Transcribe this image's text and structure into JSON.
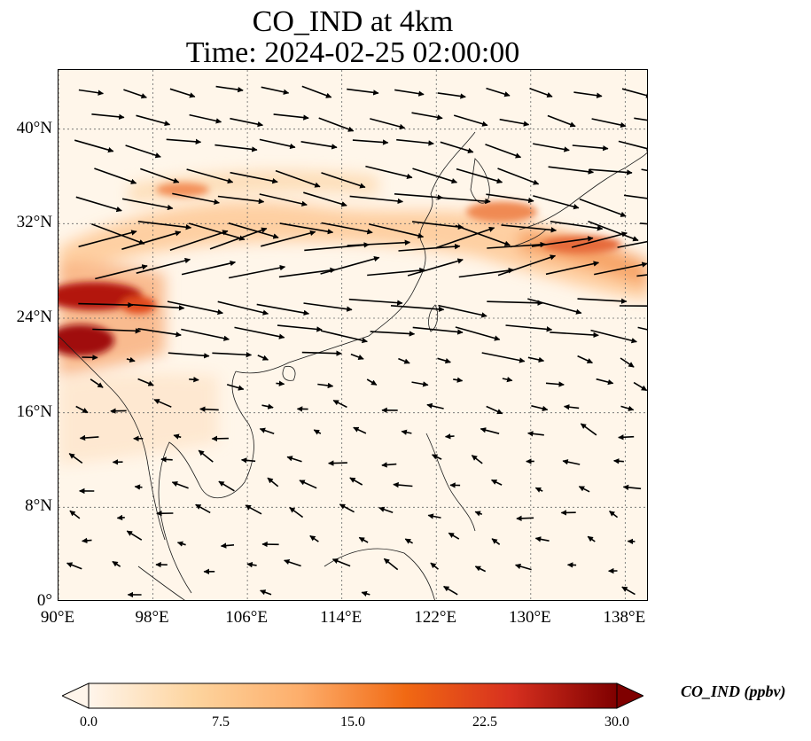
{
  "title": {
    "line1": "CO_IND at 4km",
    "line2": "Time: 2024-02-25 02:00:00"
  },
  "map": {
    "extent": {
      "lon_min": 90,
      "lon_max": 140,
      "lat_min": 0,
      "lat_max": 45
    },
    "lat_ticks": [
      {
        "value": 0,
        "label": "0°"
      },
      {
        "value": 8,
        "label": "8°N"
      },
      {
        "value": 16,
        "label": "16°N"
      },
      {
        "value": 24,
        "label": "24°N"
      },
      {
        "value": 32,
        "label": "32°N"
      },
      {
        "value": 40,
        "label": "40°N"
      }
    ],
    "lon_ticks": [
      {
        "value": 90,
        "label": "90°E"
      },
      {
        "value": 98,
        "label": "98°E"
      },
      {
        "value": 106,
        "label": "106°E"
      },
      {
        "value": 114,
        "label": "114°E"
      },
      {
        "value": 122,
        "label": "122°E"
      },
      {
        "value": 130,
        "label": "130°E"
      },
      {
        "value": 138,
        "label": "138°E"
      }
    ],
    "gridlines": "dotted",
    "variable": "CO_IND"
  },
  "colorbar": {
    "label": "CO_IND (ppbv)",
    "min": 0,
    "max": 30,
    "ticks": [
      "0.0",
      "7.5",
      "15.0",
      "22.5",
      "30.0"
    ],
    "colormap": [
      "#fff5eb",
      "#fdd49e",
      "#fdae6b",
      "#f16913",
      "#d7301f",
      "#7f0000"
    ],
    "extend": "both"
  }
}
